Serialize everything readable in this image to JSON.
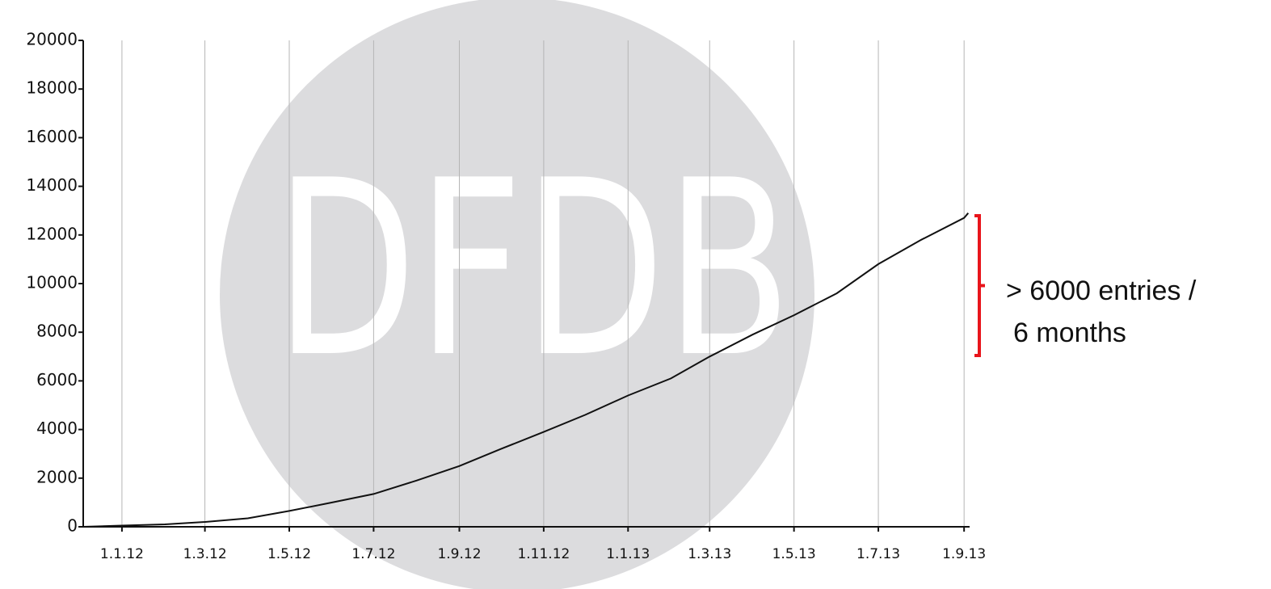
{
  "chart_data": {
    "type": "line",
    "watermark": "DFDB",
    "x": [
      "2011-12-04",
      "2012-01-01",
      "2012-02-01",
      "2012-03-01",
      "2012-04-01",
      "2012-05-01",
      "2012-06-01",
      "2012-07-01",
      "2012-08-01",
      "2012-09-01",
      "2012-10-01",
      "2012-11-01",
      "2012-12-01",
      "2013-01-01",
      "2013-02-01",
      "2013-03-01",
      "2013-04-01",
      "2013-05-01",
      "2013-06-01",
      "2013-07-01",
      "2013-08-01",
      "2013-09-01",
      "2013-09-04"
    ],
    "values": [
      0,
      50,
      100,
      200,
      350,
      650,
      1000,
      1350,
      1900,
      2500,
      3200,
      3900,
      4600,
      5400,
      6100,
      7000,
      7900,
      8700,
      9600,
      10800,
      11800,
      12700,
      12900
    ],
    "color": "#111111",
    "xlim": [
      "2011-12-04",
      "2013-09-05"
    ],
    "xticks": [
      {
        "value": "2012-01-01",
        "label": "1.1.12"
      },
      {
        "value": "2012-03-01",
        "label": "1.3.12"
      },
      {
        "value": "2012-05-01",
        "label": "1.5.12"
      },
      {
        "value": "2012-07-01",
        "label": "1.7.12"
      },
      {
        "value": "2012-09-01",
        "label": "1.9.12"
      },
      {
        "value": "2012-11-01",
        "label": "1.11.12"
      },
      {
        "value": "2013-01-01",
        "label": "1.1.13"
      },
      {
        "value": "2013-03-01",
        "label": "1.3.13"
      },
      {
        "value": "2013-05-01",
        "label": "1.5.13"
      },
      {
        "value": "2013-07-01",
        "label": "1.7.13"
      },
      {
        "value": "2013-09-01",
        "label": "1.9.13"
      }
    ],
    "ylim": [
      0,
      20000
    ],
    "yticks": [
      0,
      2000,
      4000,
      6000,
      8000,
      10000,
      12000,
      14000,
      16000,
      18000,
      20000
    ],
    "grid": true,
    "annotation": [
      "> 6000 entries /",
      "6 months"
    ],
    "annotation_color": "#e8141b"
  }
}
